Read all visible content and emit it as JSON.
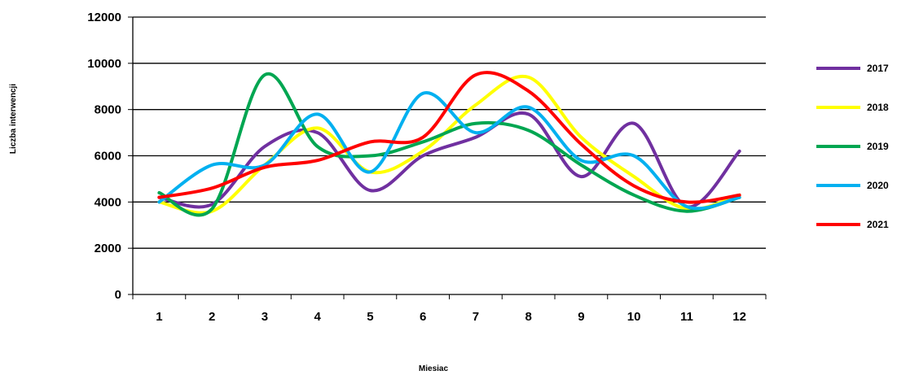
{
  "chart_data": {
    "type": "line",
    "xlabel": "Miesiac",
    "ylabel": "Liczba interwencji",
    "ylim": [
      0,
      12000
    ],
    "yticks": [
      0,
      2000,
      4000,
      6000,
      8000,
      10000,
      12000
    ],
    "categories": [
      "1",
      "2",
      "3",
      "4",
      "5",
      "6",
      "7",
      "8",
      "9",
      "10",
      "11",
      "12"
    ],
    "grid": "horizontal",
    "legend_position": "right",
    "series": [
      {
        "name": "2017",
        "color": "#7030A0",
        "values": [
          4200,
          3900,
          6400,
          7000,
          4500,
          6000,
          6800,
          7800,
          5100,
          7400,
          3800,
          6200
        ]
      },
      {
        "name": "2018",
        "color": "#FFFF00",
        "values": [
          4000,
          3600,
          5600,
          7200,
          5300,
          6200,
          8200,
          9400,
          6800,
          5100,
          3700,
          4300
        ]
      },
      {
        "name": "2019",
        "color": "#00A651",
        "values": [
          4400,
          3700,
          9500,
          6400,
          6000,
          6600,
          7400,
          7100,
          5600,
          4300,
          3600,
          4200
        ]
      },
      {
        "name": "2020",
        "color": "#00B0F0",
        "values": [
          4000,
          5600,
          5600,
          7800,
          5300,
          8700,
          7000,
          8100,
          5800,
          6000,
          3800,
          4200
        ]
      },
      {
        "name": "2021",
        "color": "#FF0000",
        "values": [
          4200,
          4600,
          5500,
          5800,
          6600,
          6800,
          9500,
          8800,
          6500,
          4700,
          4000,
          4300
        ]
      }
    ]
  }
}
